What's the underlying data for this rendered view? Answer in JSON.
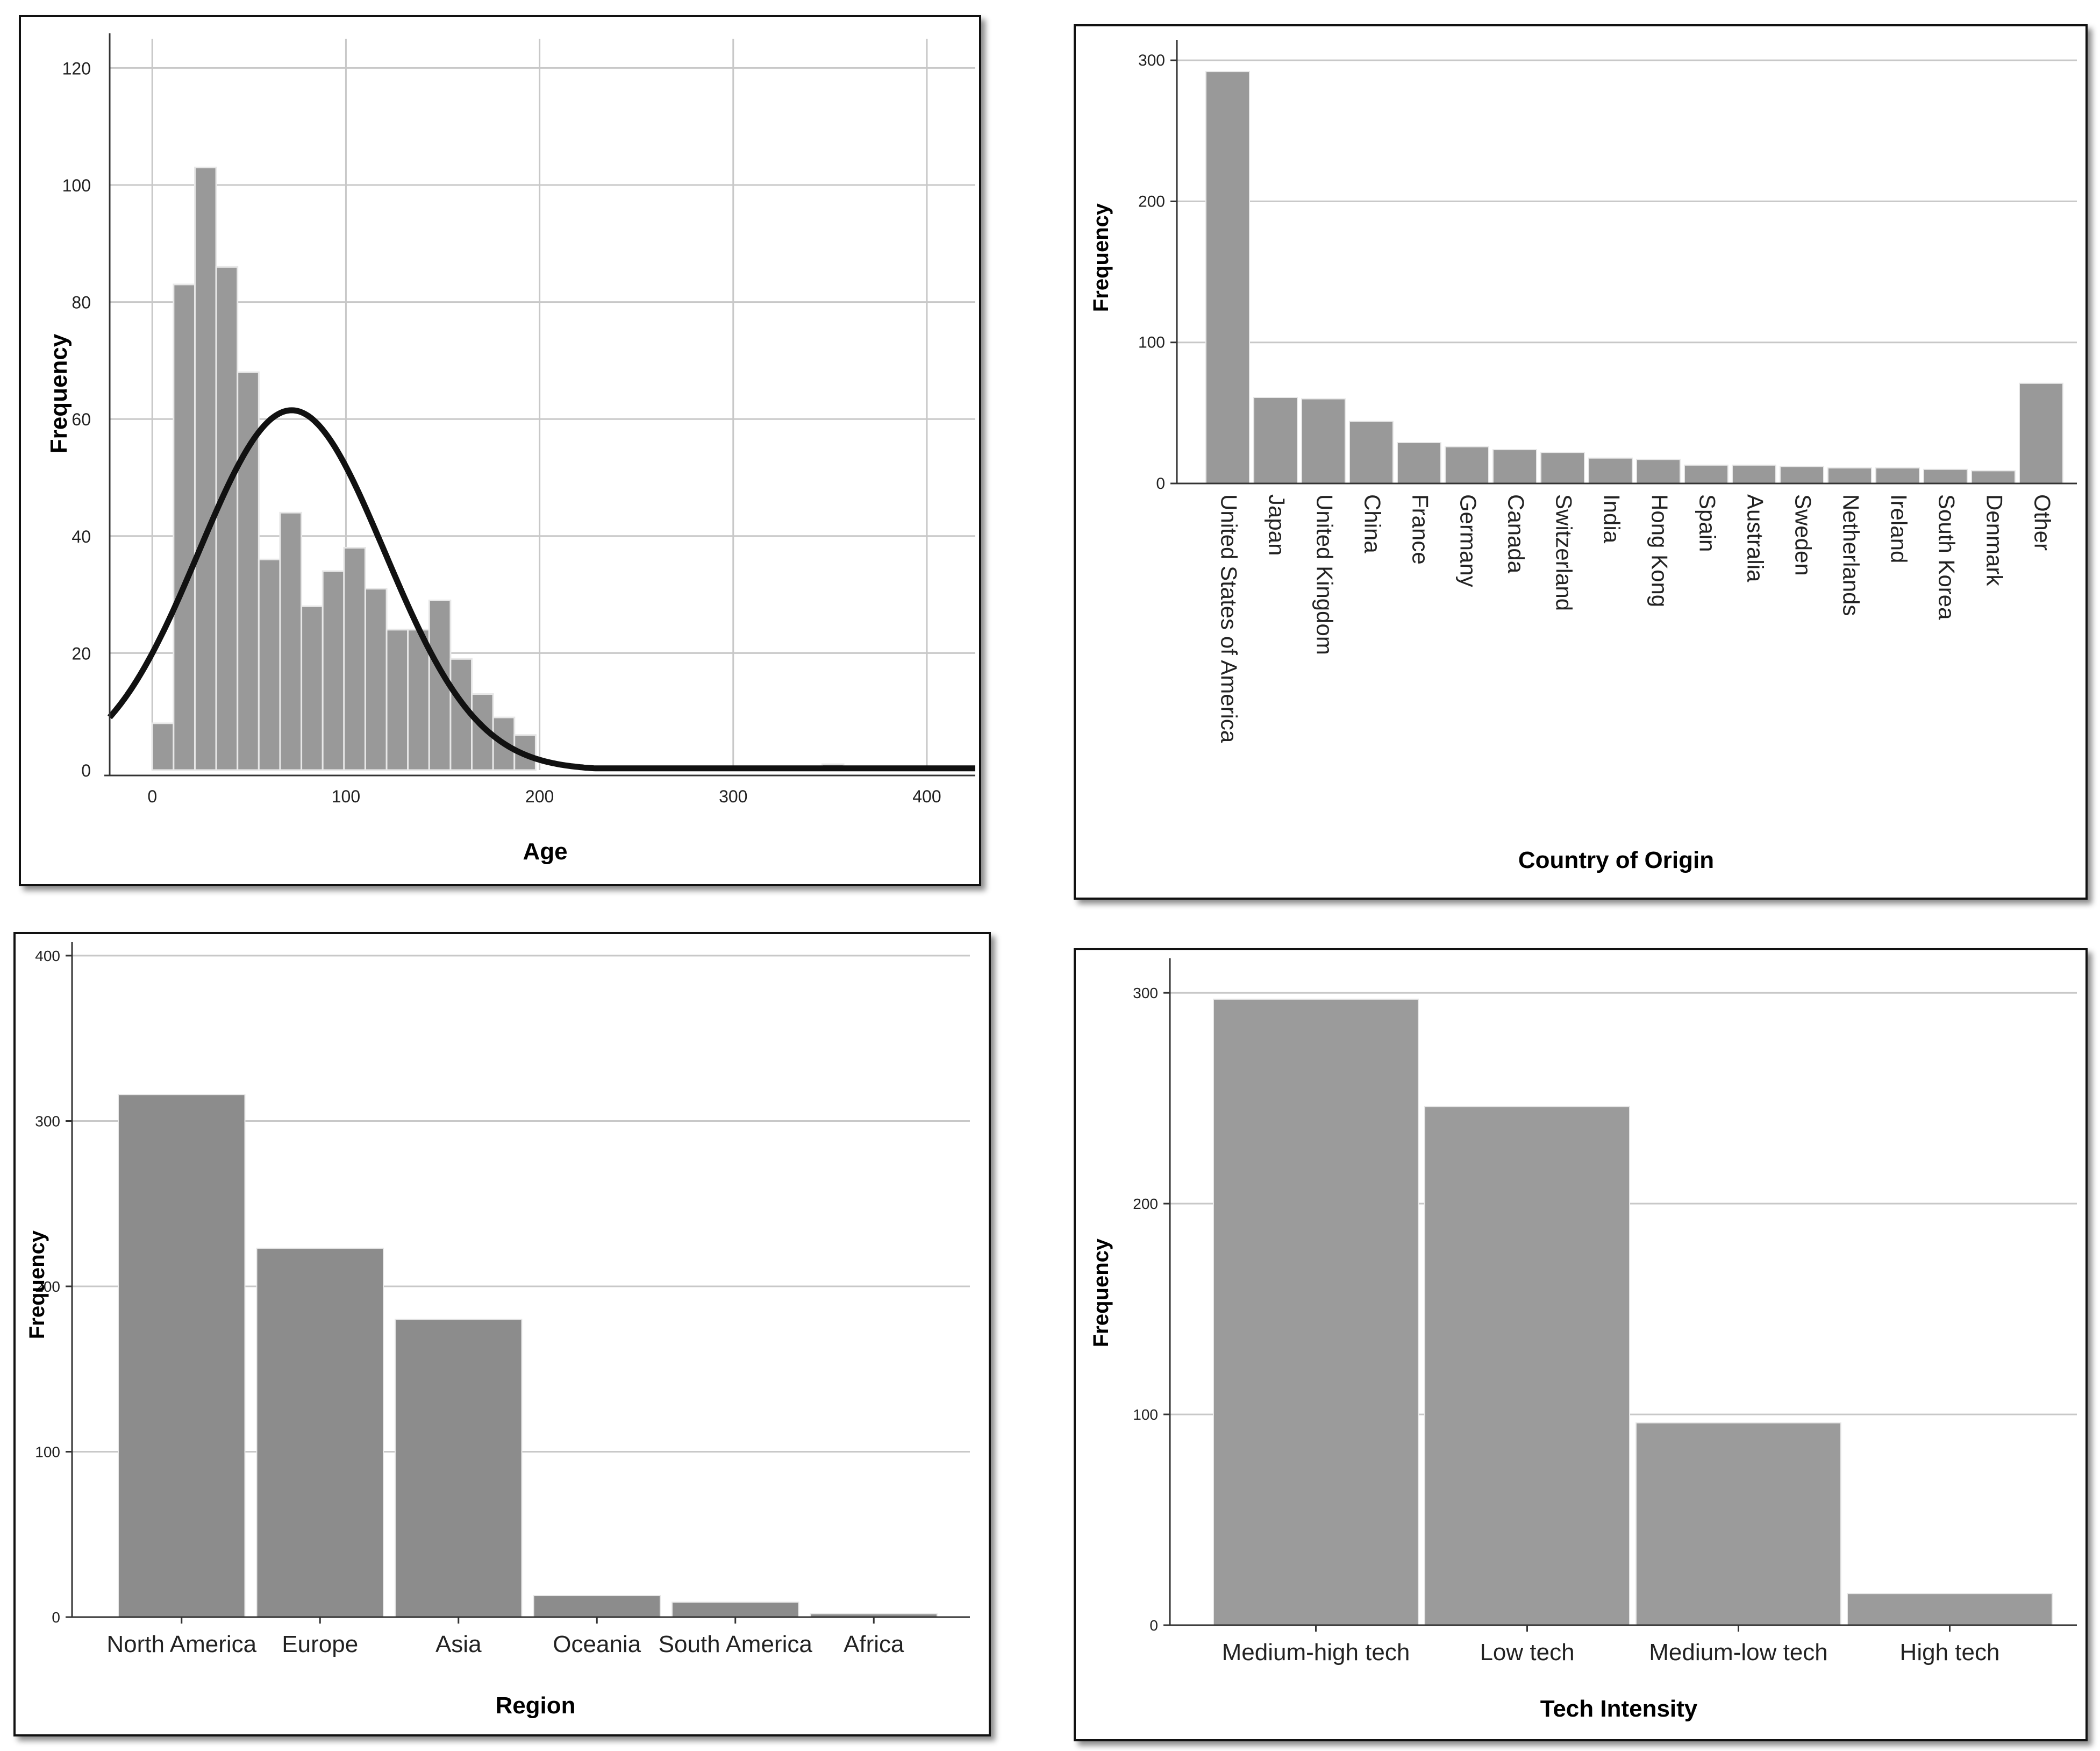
{
  "chart_data": [
    {
      "id": "age",
      "type": "bar",
      "subtype": "histogram",
      "title": "",
      "xlabel": "Age",
      "ylabel": "Frequency",
      "xlim": [
        -22,
        425
      ],
      "ylim": [
        0,
        125
      ],
      "xticks": [
        "0",
        "100",
        "200",
        "300",
        "400"
      ],
      "yticks": [
        "0",
        "20",
        "40",
        "60",
        "80",
        "100",
        "120"
      ],
      "bin_width": 11,
      "bins": [
        {
          "start": 0,
          "end": 11,
          "value": 8
        },
        {
          "start": 11,
          "end": 22,
          "value": 83
        },
        {
          "start": 22,
          "end": 33,
          "value": 103
        },
        {
          "start": 33,
          "end": 44,
          "value": 86
        },
        {
          "start": 44,
          "end": 55,
          "value": 68
        },
        {
          "start": 55,
          "end": 66,
          "value": 36
        },
        {
          "start": 66,
          "end": 77,
          "value": 44
        },
        {
          "start": 77,
          "end": 88,
          "value": 28
        },
        {
          "start": 88,
          "end": 99,
          "value": 34
        },
        {
          "start": 99,
          "end": 110,
          "value": 38
        },
        {
          "start": 110,
          "end": 121,
          "value": 31
        },
        {
          "start": 121,
          "end": 132,
          "value": 24
        },
        {
          "start": 132,
          "end": 143,
          "value": 24
        },
        {
          "start": 143,
          "end": 154,
          "value": 29
        },
        {
          "start": 154,
          "end": 165,
          "value": 19
        },
        {
          "start": 165,
          "end": 176,
          "value": 13
        },
        {
          "start": 176,
          "end": 187,
          "value": 9
        },
        {
          "start": 187,
          "end": 198,
          "value": 6
        },
        {
          "start": 346,
          "end": 357,
          "value": 1
        }
      ],
      "normal_curve": {
        "mean": 72,
        "peak": 61.5,
        "sd": 48
      },
      "grid": true,
      "colors": {
        "bar": "#999999",
        "bar_edge": "#e8e8e8",
        "curve": "#111111",
        "grid": "#c8c8c8"
      }
    },
    {
      "id": "country",
      "type": "bar",
      "title": "",
      "xlabel": "Country of Origin",
      "ylabel": "Frequency",
      "ylim": [
        0,
        305
      ],
      "yticks": [
        "0",
        "100",
        "200",
        "300"
      ],
      "categories": [
        "United States of America",
        "Japan",
        "United Kingdom",
        "China",
        "France",
        "Germany",
        "Canada",
        "Switzerland",
        "India",
        "Hong Kong",
        "Spain",
        "Australia",
        "Sweden",
        "Netherlands",
        "Ireland",
        "South Korea",
        "Denmark",
        "Other"
      ],
      "values": [
        292,
        61,
        60,
        44,
        29,
        26,
        24,
        22,
        18,
        17,
        13,
        13,
        12,
        11,
        11,
        10,
        9,
        71
      ],
      "grid": true,
      "colors": {
        "bar": "#999999",
        "bar_edge": "#e8e8e8",
        "grid": "#c8c8c8"
      }
    },
    {
      "id": "region",
      "type": "bar",
      "title": "",
      "xlabel": "Region",
      "ylabel": "Frequency",
      "ylim": [
        0,
        400
      ],
      "yticks": [
        "0",
        "100",
        "200",
        "300",
        "400"
      ],
      "categories": [
        "North America",
        "Europe",
        "Asia",
        "Oceania",
        "South America",
        "Africa"
      ],
      "values": [
        316,
        223,
        180,
        13,
        9,
        2
      ],
      "grid": true,
      "colors": {
        "bar": "#8c8c8c",
        "bar_edge": "#e8e8e8",
        "grid": "#c8c8c8"
      }
    },
    {
      "id": "tech",
      "type": "bar",
      "title": "",
      "xlabel": "Tech Intensity",
      "ylabel": "Frequency",
      "ylim": [
        0,
        310
      ],
      "yticks": [
        "0",
        "100",
        "200",
        "300"
      ],
      "categories": [
        "Medium-high tech",
        "Low tech",
        "Medium-low tech",
        "High tech"
      ],
      "values": [
        297,
        246,
        96,
        15
      ],
      "grid": true,
      "colors": {
        "bar": "#9b9b9b",
        "bar_edge": "#e8e8e8",
        "grid": "#c8c8c8"
      }
    }
  ]
}
